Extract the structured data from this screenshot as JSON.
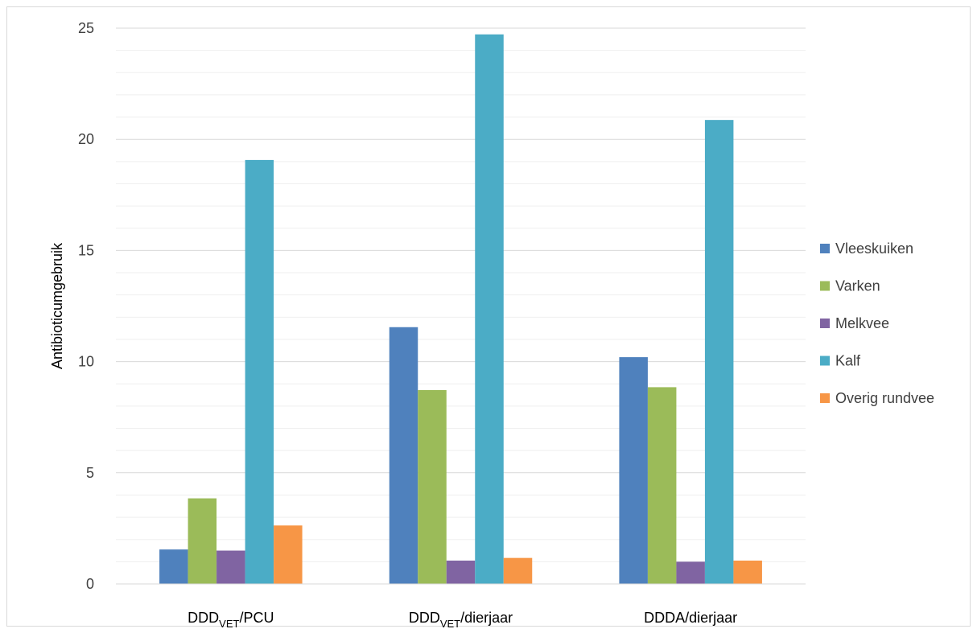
{
  "chart_data": {
    "type": "bar",
    "title": "",
    "xlabel": "",
    "ylabel": "Antibioticumgebruik",
    "ylim": [
      0,
      25
    ],
    "yticks": [
      0,
      5,
      10,
      15,
      20,
      25
    ],
    "grid": true,
    "legend_position": "right",
    "categories": [
      {
        "main": "DDD",
        "sub": "VET",
        "rest": "/PCU"
      },
      {
        "main": "DDD",
        "sub": "VET",
        "rest": "/dierjaar"
      },
      {
        "main": "DDDA/dierjaar",
        "sub": "",
        "rest": ""
      }
    ],
    "series": [
      {
        "name": "Vleeskuiken",
        "color": "#4f81bd",
        "values": [
          1.55,
          11.55,
          10.2
        ]
      },
      {
        "name": "Varken",
        "color": "#9bbb59",
        "values": [
          3.85,
          8.72,
          8.85
        ]
      },
      {
        "name": "Melkvee",
        "color": "#8064a2",
        "values": [
          1.5,
          1.05,
          1.0
        ]
      },
      {
        "name": "Kalf",
        "color": "#4bacc6",
        "values": [
          19.07,
          24.72,
          20.87
        ]
      },
      {
        "name": "Overig rundvee",
        "color": "#f79646",
        "values": [
          2.63,
          1.17,
          1.05
        ]
      }
    ]
  }
}
